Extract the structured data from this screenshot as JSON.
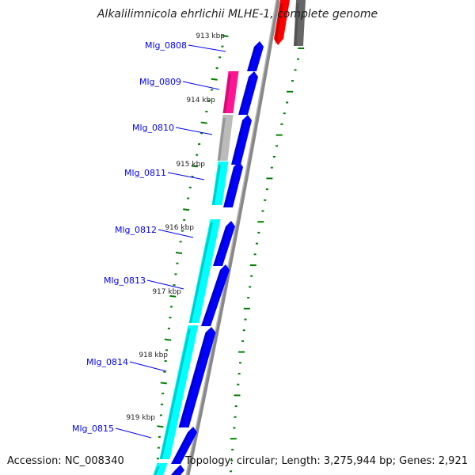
{
  "title": "Alkalilimnicola ehrlichii MLHE-1, complete genome",
  "accession": "Accession: NC_008340",
  "summary": "Topology: circular; Length: 3,275,944 bp; Genes: 2,921",
  "genes": [
    "Mlg_0808",
    "Mlg_0809",
    "Mlg_0810",
    "Mlg_0811",
    "Mlg_0812",
    "Mlg_0813",
    "Mlg_0814",
    "Mlg_0815"
  ],
  "ticks": [
    "913 kbp",
    "914 kbp",
    "915 kbp",
    "916 kbp",
    "917 kbp",
    "918 kbp",
    "919 kbp"
  ],
  "colors": {
    "cds": "#0000ff",
    "cyan": "#00ffff",
    "pink": "#ff1493",
    "gray": "#bbbbbb",
    "red": "#ff0000",
    "tick": "#008000"
  }
}
